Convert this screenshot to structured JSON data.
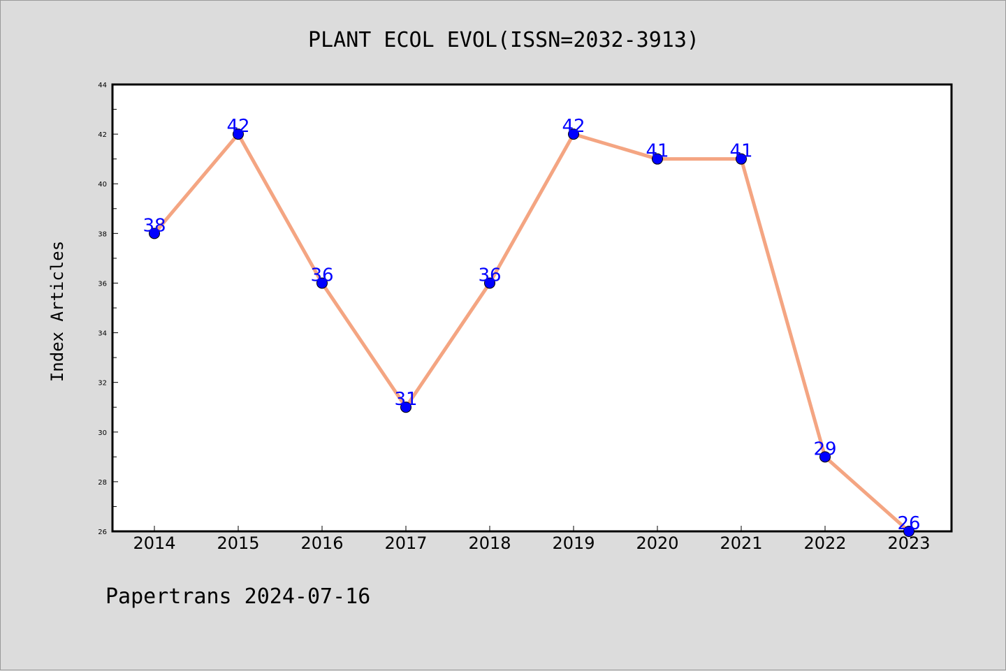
{
  "chart_data": {
    "type": "line",
    "title": "PLANT ECOL EVOL(ISSN=2032-3913)",
    "ylabel": "Index Articles",
    "xlabel": "",
    "footer": "Papertrans 2024-07-16",
    "categories": [
      "2014",
      "2015",
      "2016",
      "2017",
      "2018",
      "2019",
      "2020",
      "2021",
      "2022",
      "2023"
    ],
    "series": [
      {
        "values": [
          38,
          42,
          36,
          31,
          36,
          42,
          41,
          41,
          29,
          26
        ],
        "line_color": "#f4a582",
        "marker_color": "#0000ff",
        "label_color": "#0000ff"
      }
    ],
    "ylim": [
      26,
      44
    ],
    "yticks": [
      "26",
      "28",
      "30",
      "32",
      "34",
      "36",
      "38",
      "40",
      "42",
      "44"
    ],
    "grid": false,
    "legend": "none"
  }
}
